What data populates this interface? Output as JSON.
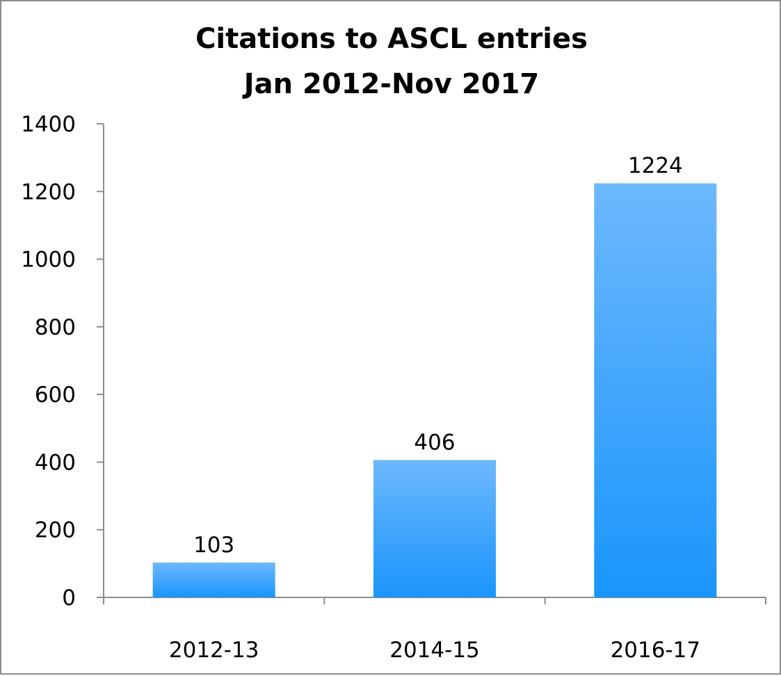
{
  "chart_data": {
    "type": "bar",
    "title": "Citations to ASCL entries",
    "subtitle": "Jan 2012-Nov 2017",
    "xlabel": "",
    "ylabel": "",
    "categories": [
      "2012-13",
      "2014-15",
      "2016-17"
    ],
    "values": [
      103,
      406,
      1224
    ],
    "data_labels": [
      "103",
      "406",
      "1224"
    ],
    "ylim": [
      0,
      1400
    ],
    "yticks": [
      0,
      200,
      400,
      600,
      800,
      1000,
      1200,
      1400
    ],
    "ytick_labels": [
      "0",
      "200",
      "400",
      "600",
      "800",
      "1000",
      "1200",
      "1400"
    ],
    "grid": false,
    "legend": "none",
    "colors": {
      "bar_top": "#6db8fd",
      "bar_bottom": "#1a95fb",
      "axis": "#8c8c8c",
      "border": "#8c8c8c"
    }
  }
}
